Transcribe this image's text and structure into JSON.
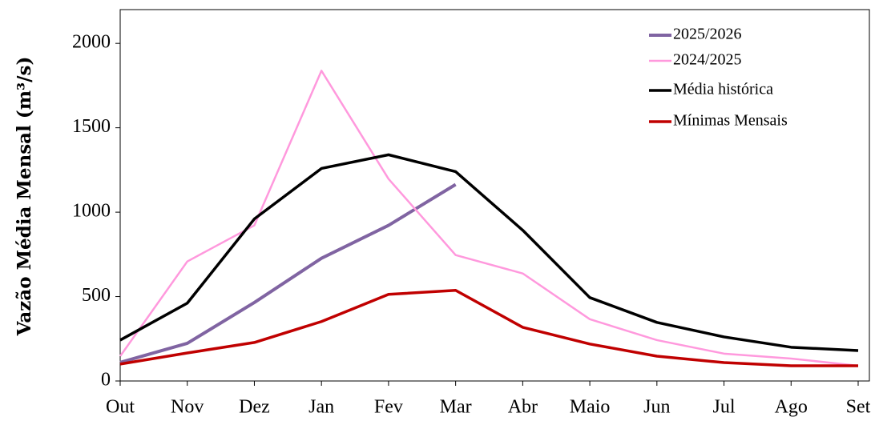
{
  "chart_data": {
    "type": "line",
    "ylabel": "Vazão Média Mensal (m³/s)",
    "categories": [
      "Out",
      "Nov",
      "Dez",
      "Jan",
      "Fev",
      "Mar",
      "Abr",
      "Maio",
      "Jun",
      "Jul",
      "Ago",
      "Set"
    ],
    "ylim": [
      0,
      2200
    ],
    "yticks": [
      0,
      500,
      1000,
      1500,
      2000
    ],
    "grid": false,
    "legend": "top-right",
    "series": [
      {
        "name": "2025/2026",
        "color": "#8064a2",
        "width": 4,
        "values": [
          110,
          223,
          465,
          727,
          922,
          1164,
          null,
          null,
          null,
          null,
          null,
          null
        ]
      },
      {
        "name": "2024/2025",
        "color": "#ff99dd",
        "width": 2.5,
        "values": [
          147,
          708,
          922,
          1838,
          1197,
          746,
          637,
          366,
          242,
          162,
          133,
          90
        ]
      },
      {
        "name": "Média histórica",
        "color": "#000000",
        "width": 3.5,
        "values": [
          242,
          461,
          960,
          1259,
          1340,
          1240,
          893,
          494,
          347,
          261,
          200,
          180
        ]
      },
      {
        "name": "Mínimas Mensais",
        "color": "#c00000",
        "width": 3.5,
        "values": [
          100,
          166,
          228,
          352,
          513,
          537,
          318,
          219,
          147,
          109,
          90,
          90
        ]
      }
    ]
  }
}
